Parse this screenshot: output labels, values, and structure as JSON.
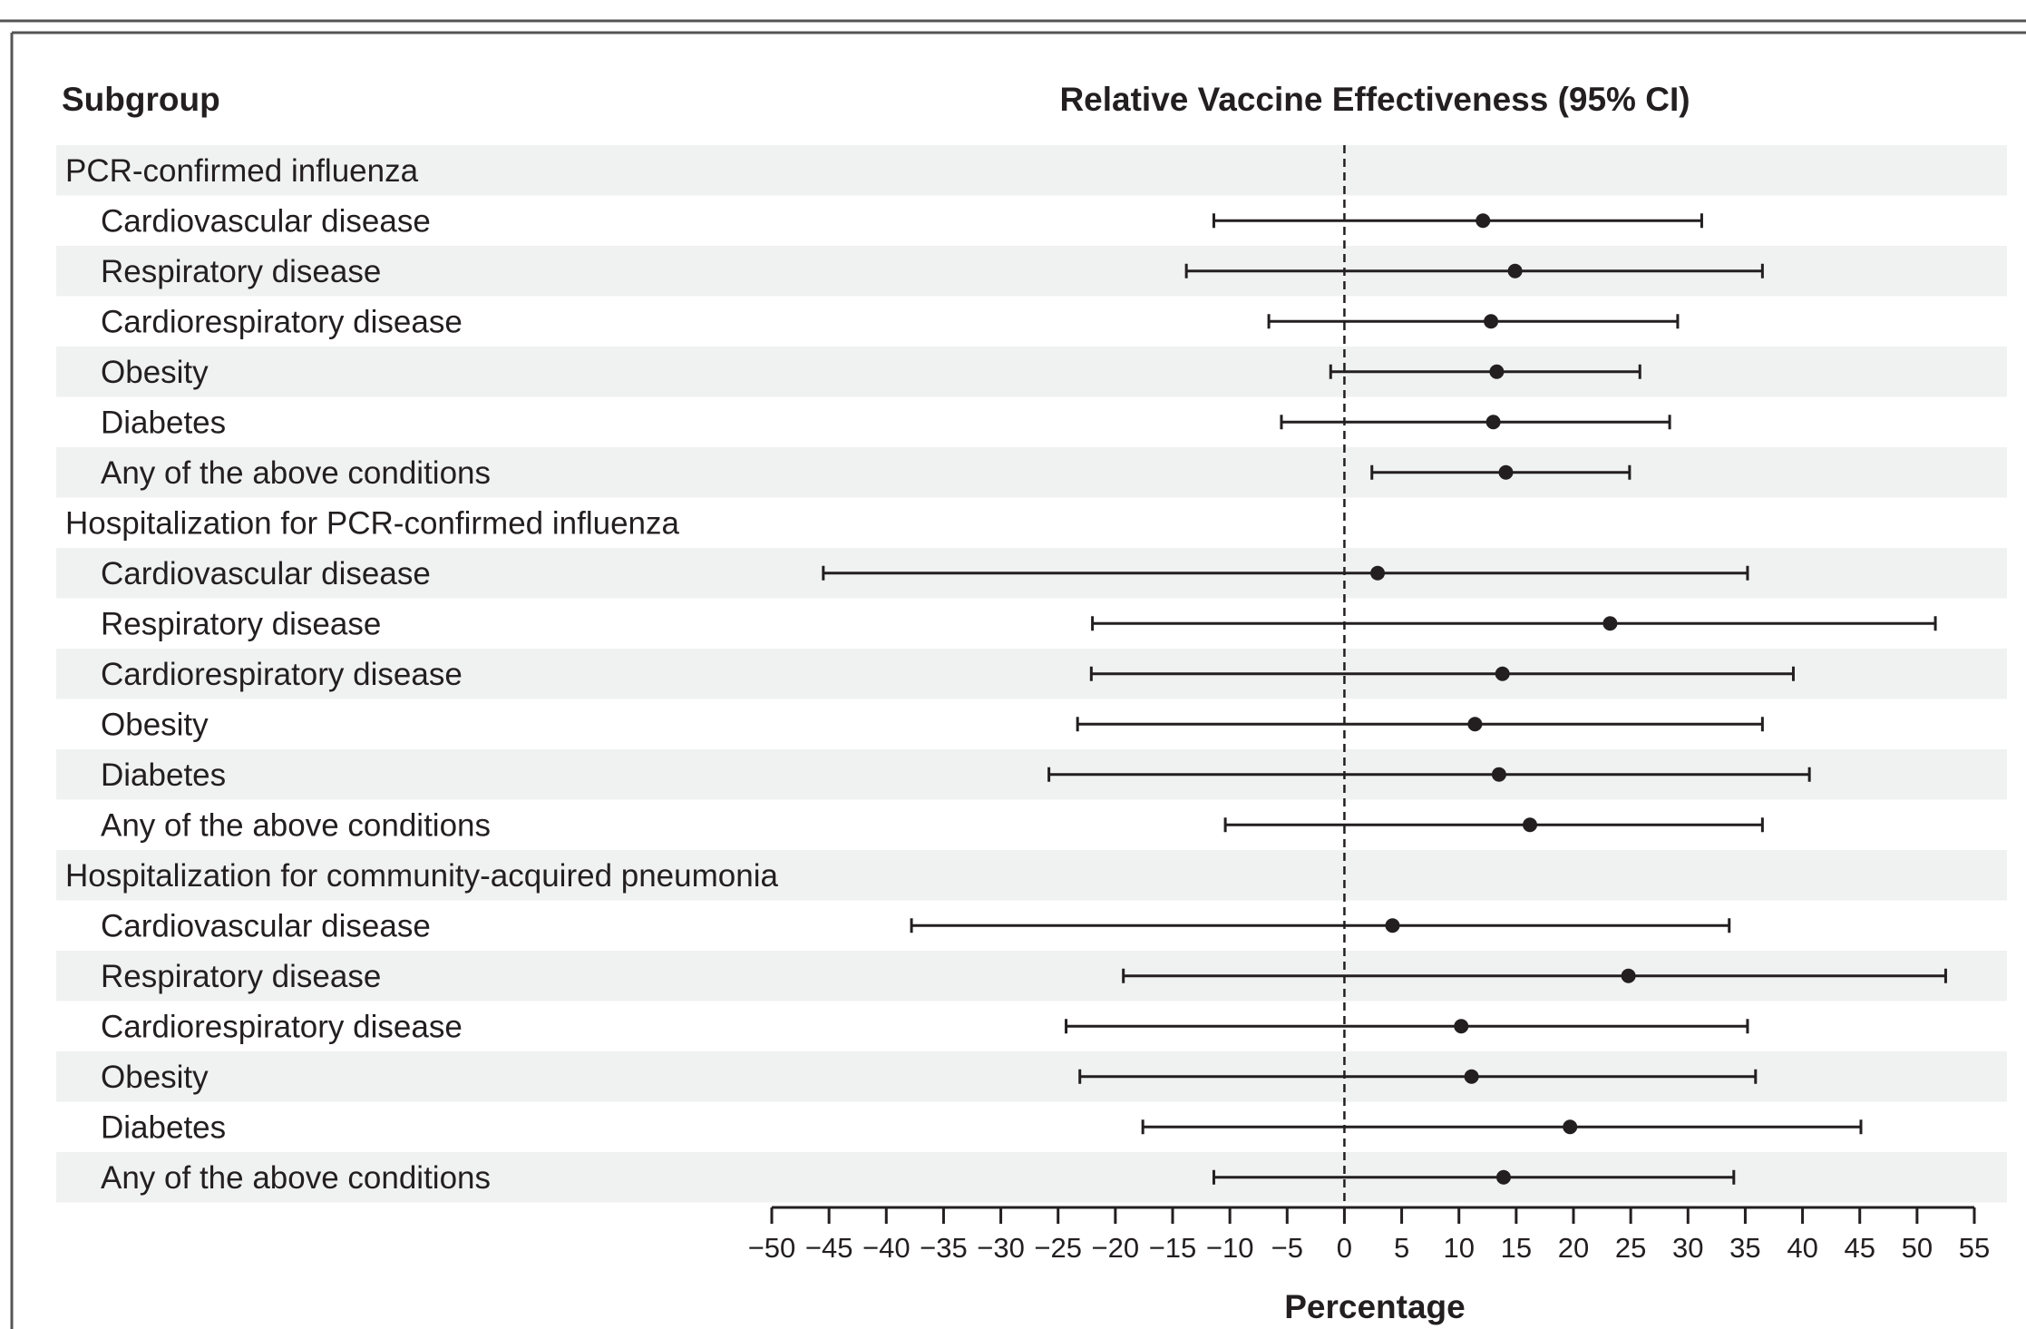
{
  "chart_data": {
    "type": "forest",
    "column_headers": {
      "subgroup": "Subgroup",
      "effect": "Relative Vaccine Effectiveness (95% CI)"
    },
    "xlabel": "Percentage",
    "xlim": [
      -50,
      55
    ],
    "xticks": [
      -50,
      -45,
      -40,
      -35,
      -30,
      -25,
      -20,
      -15,
      -10,
      -5,
      0,
      5,
      10,
      15,
      20,
      25,
      30,
      35,
      40,
      45,
      50,
      55
    ],
    "tick_labels": [
      "−50",
      "−45",
      "−40",
      "−35",
      "−30",
      "−25",
      "−20",
      "−15",
      "−10",
      "−5",
      "0",
      "5",
      "10",
      "15",
      "20",
      "25",
      "30",
      "35",
      "40",
      "45",
      "50",
      "55"
    ],
    "reference_line": 0,
    "groups": [
      {
        "label": "PCR-confirmed influenza",
        "rows": [
          {
            "label": "Cardiovascular disease",
            "estimate": 12.1,
            "lower": -11.4,
            "upper": 31.2
          },
          {
            "label": "Respiratory disease",
            "estimate": 14.9,
            "lower": -13.8,
            "upper": 36.5
          },
          {
            "label": "Cardiorespiratory disease",
            "estimate": 12.8,
            "lower": -6.6,
            "upper": 29.1
          },
          {
            "label": "Obesity",
            "estimate": 13.3,
            "lower": -1.2,
            "upper": 25.8
          },
          {
            "label": "Diabetes",
            "estimate": 13.0,
            "lower": -5.5,
            "upper": 28.4
          },
          {
            "label": "Any of the above conditions",
            "estimate": 14.1,
            "lower": 2.4,
            "upper": 24.9
          }
        ]
      },
      {
        "label": "Hospitalization for PCR-confirmed influenza",
        "rows": [
          {
            "label": "Cardiovascular disease",
            "estimate": 2.9,
            "lower": -45.5,
            "upper": 35.2
          },
          {
            "label": "Respiratory disease",
            "estimate": 23.2,
            "lower": -22.0,
            "upper": 51.6
          },
          {
            "label": "Cardiorespiratory disease",
            "estimate": 13.8,
            "lower": -22.1,
            "upper": 39.2
          },
          {
            "label": "Obesity",
            "estimate": 11.4,
            "lower": -23.3,
            "upper": 36.5
          },
          {
            "label": "Diabetes",
            "estimate": 13.5,
            "lower": -25.8,
            "upper": 40.6
          },
          {
            "label": "Any of the above conditions",
            "estimate": 16.2,
            "lower": -10.4,
            "upper": 36.5
          }
        ]
      },
      {
        "label": "Hospitalization for community-acquired pneumonia",
        "rows": [
          {
            "label": "Cardiovascular disease",
            "estimate": 4.2,
            "lower": -37.8,
            "upper": 33.6
          },
          {
            "label": "Respiratory disease",
            "estimate": 24.8,
            "lower": -19.3,
            "upper": 52.5
          },
          {
            "label": "Cardiorespiratory disease",
            "estimate": 10.2,
            "lower": -24.3,
            "upper": 35.2
          },
          {
            "label": "Obesity",
            "estimate": 11.1,
            "lower": -23.1,
            "upper": 35.9
          },
          {
            "label": "Diabetes",
            "estimate": 19.7,
            "lower": -17.6,
            "upper": 45.1
          },
          {
            "label": "Any of the above conditions",
            "estimate": 13.9,
            "lower": -11.4,
            "upper": 34.0
          }
        ]
      }
    ],
    "colors": {
      "stripe": "#f0f1f1",
      "ink": "#231f20",
      "frame": "#555555"
    }
  }
}
